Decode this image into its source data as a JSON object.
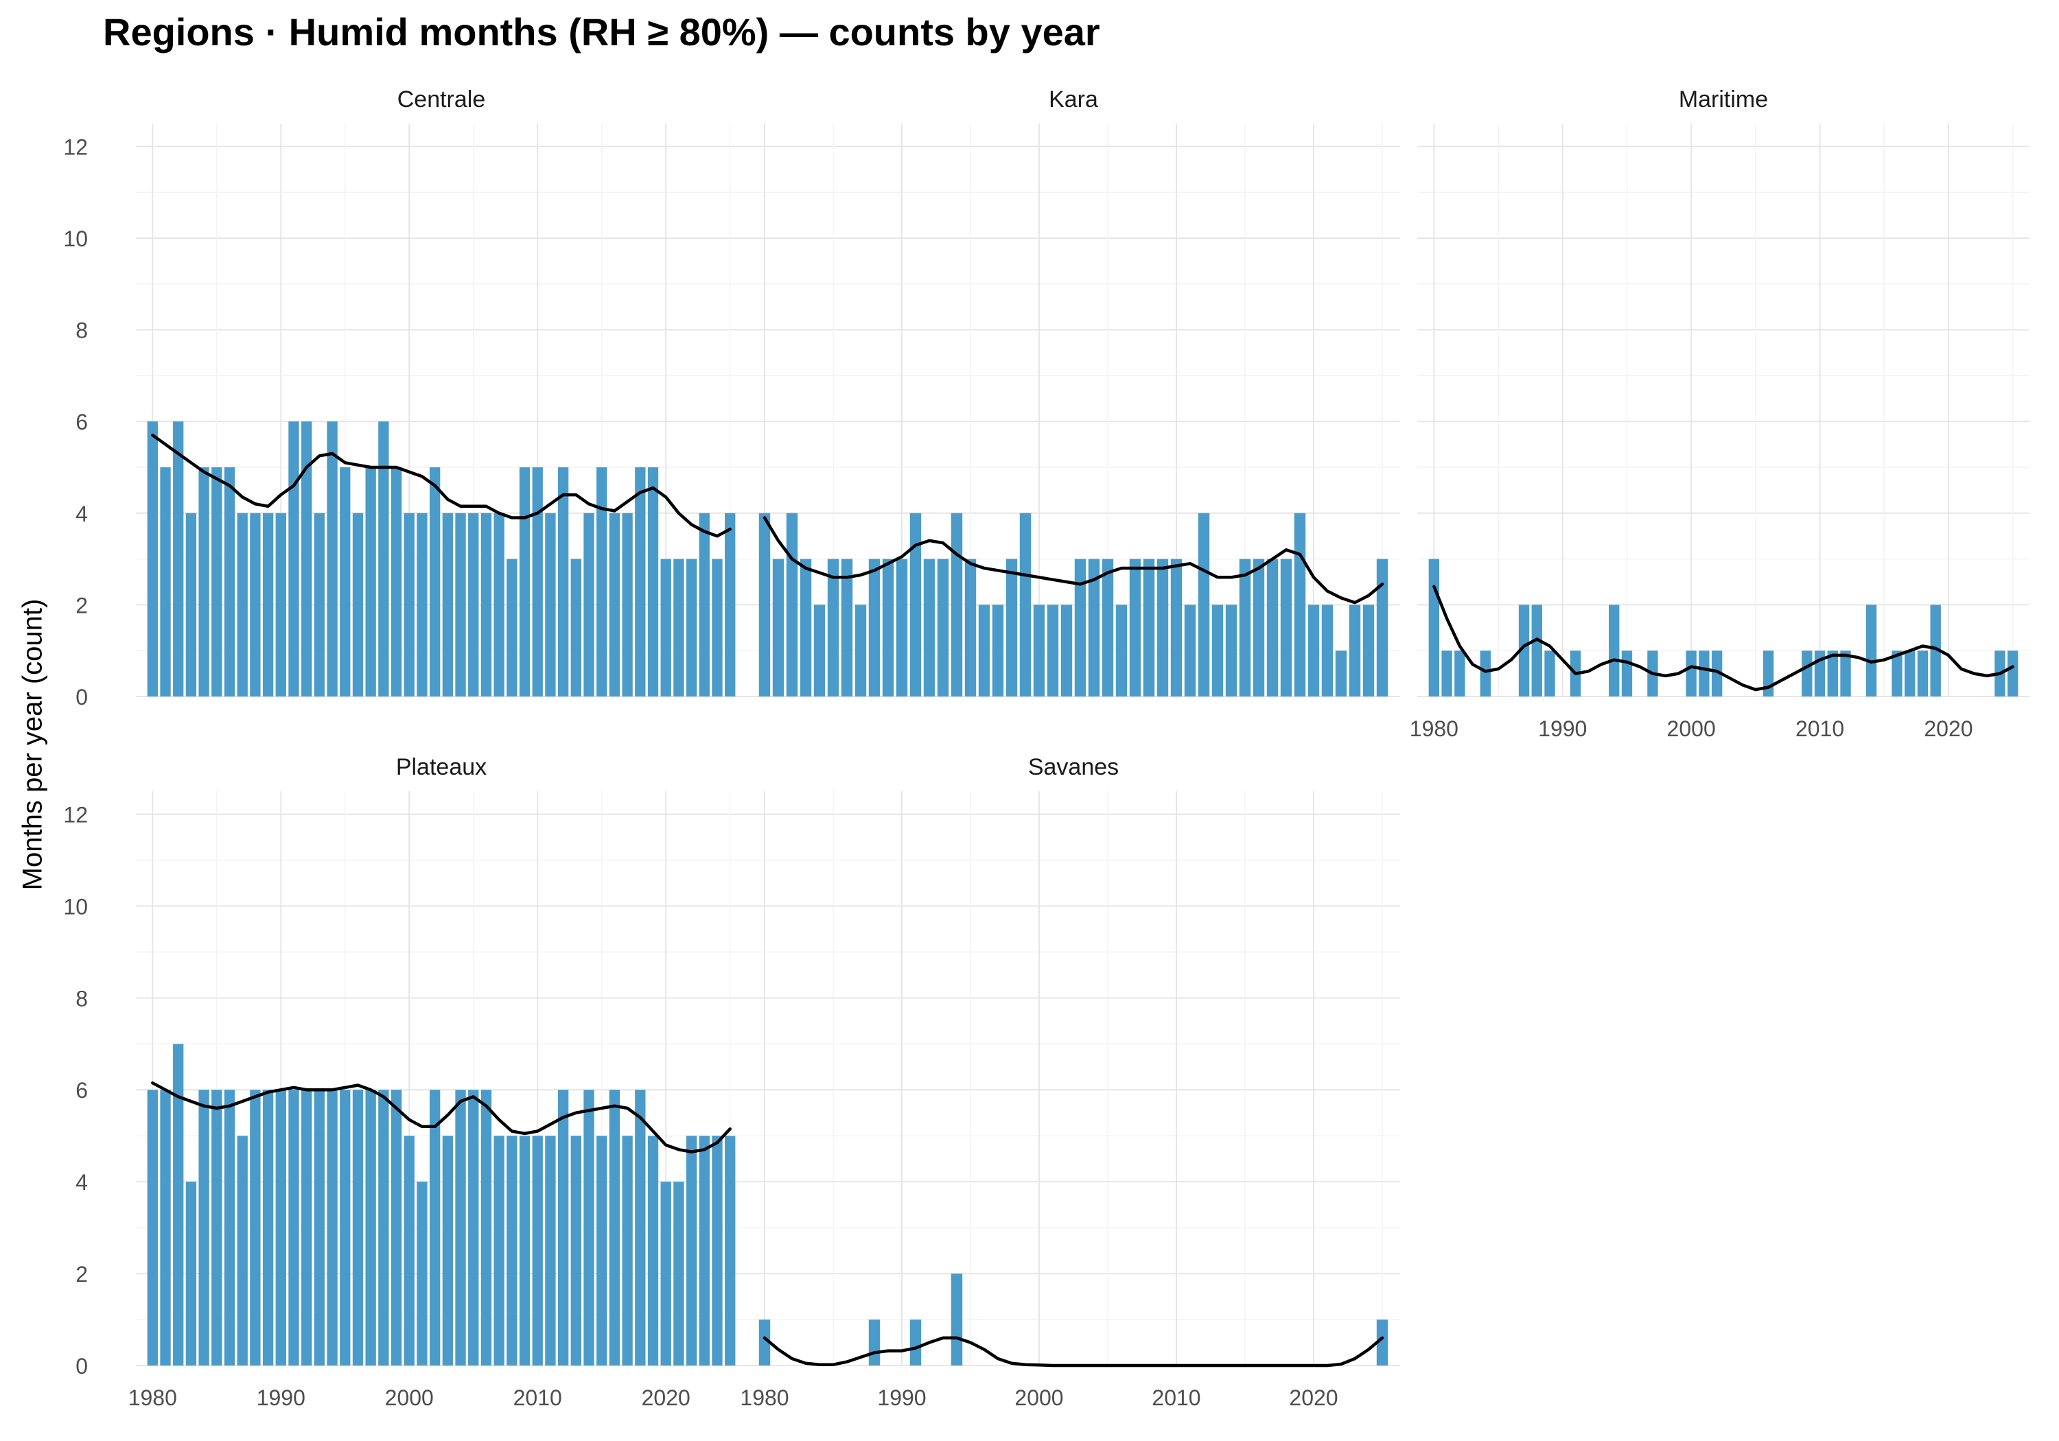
{
  "title": "Regions · Humid months (RH ≥ 80%) — counts by year",
  "chart_data": {
    "type": "bar",
    "title": "Regions · Humid months (RH ≥ 80%) — counts by year",
    "xlabel": "",
    "ylabel": "Months per year (count)",
    "ylim": [
      0,
      12.5
    ],
    "y_ticks": [
      0,
      2,
      4,
      6,
      8,
      10,
      12
    ],
    "xlim": [
      1978.7,
      2026.3
    ],
    "x_ticks": [
      1980,
      1990,
      2000,
      2010,
      2020
    ],
    "grid": true,
    "bar_color": "#4a9bc9",
    "smooth_color": "#000000",
    "x": [
      1980,
      1981,
      1982,
      1983,
      1984,
      1985,
      1986,
      1987,
      1988,
      1989,
      1990,
      1991,
      1992,
      1993,
      1994,
      1995,
      1996,
      1997,
      1998,
      1999,
      2000,
      2001,
      2002,
      2003,
      2004,
      2005,
      2006,
      2007,
      2008,
      2009,
      2010,
      2011,
      2012,
      2013,
      2014,
      2015,
      2016,
      2017,
      2018,
      2019,
      2020,
      2021,
      2022,
      2023,
      2024,
      2025
    ],
    "panels": [
      {
        "name": "Centrale",
        "values": [
          6,
          5,
          6,
          4,
          5,
          5,
          5,
          4,
          4,
          4,
          4,
          6,
          6,
          4,
          6,
          5,
          4,
          5,
          6,
          5,
          4,
          4,
          5,
          4,
          4,
          4,
          4,
          4,
          3,
          5,
          5,
          4,
          5,
          3,
          4,
          5,
          4,
          4,
          5,
          5,
          3,
          3,
          3,
          4,
          3,
          4
        ],
        "smooth": [
          5.7,
          5.5,
          5.3,
          5.1,
          4.9,
          4.75,
          4.6,
          4.35,
          4.2,
          4.15,
          4.4,
          4.6,
          5.0,
          5.25,
          5.3,
          5.1,
          5.05,
          5.0,
          5.0,
          5.0,
          4.9,
          4.8,
          4.6,
          4.3,
          4.15,
          4.15,
          4.15,
          4.0,
          3.9,
          3.9,
          4.0,
          4.2,
          4.4,
          4.4,
          4.2,
          4.1,
          4.05,
          4.25,
          4.45,
          4.55,
          4.35,
          4.0,
          3.75,
          3.6,
          3.5,
          3.65
        ]
      },
      {
        "name": "Kara",
        "values": [
          4,
          3,
          4,
          3,
          2,
          3,
          3,
          2,
          3,
          3,
          3,
          4,
          3,
          3,
          4,
          3,
          2,
          2,
          3,
          4,
          2,
          2,
          2,
          3,
          3,
          3,
          2,
          3,
          3,
          3,
          3,
          2,
          4,
          2,
          2,
          3,
          3,
          3,
          3,
          4,
          2,
          2,
          1,
          2,
          2,
          3
        ],
        "smooth": [
          3.9,
          3.4,
          3.0,
          2.8,
          2.7,
          2.6,
          2.6,
          2.65,
          2.75,
          2.9,
          3.05,
          3.3,
          3.4,
          3.35,
          3.1,
          2.9,
          2.8,
          2.75,
          2.7,
          2.65,
          2.6,
          2.55,
          2.5,
          2.45,
          2.55,
          2.7,
          2.8,
          2.8,
          2.8,
          2.8,
          2.85,
          2.9,
          2.75,
          2.6,
          2.6,
          2.65,
          2.8,
          3.0,
          3.2,
          3.1,
          2.6,
          2.3,
          2.15,
          2.05,
          2.2,
          2.45
        ]
      },
      {
        "name": "Maritime",
        "values": [
          3,
          1,
          1,
          0,
          1,
          0,
          0,
          2,
          2,
          1,
          0,
          1,
          0,
          0,
          2,
          1,
          0,
          1,
          0,
          0,
          1,
          1,
          1,
          0,
          0,
          0,
          1,
          0,
          0,
          1,
          1,
          1,
          1,
          0,
          2,
          0,
          1,
          1,
          1,
          2,
          0,
          0,
          0,
          0,
          1,
          1
        ],
        "smooth": [
          2.4,
          1.7,
          1.1,
          0.7,
          0.55,
          0.6,
          0.8,
          1.1,
          1.25,
          1.1,
          0.8,
          0.5,
          0.55,
          0.7,
          0.8,
          0.75,
          0.65,
          0.5,
          0.45,
          0.5,
          0.65,
          0.6,
          0.55,
          0.4,
          0.25,
          0.15,
          0.2,
          0.35,
          0.5,
          0.65,
          0.8,
          0.9,
          0.9,
          0.85,
          0.75,
          0.8,
          0.9,
          1.0,
          1.1,
          1.05,
          0.9,
          0.6,
          0.5,
          0.45,
          0.5,
          0.65
        ]
      },
      {
        "name": "Plateaux",
        "values": [
          6,
          6,
          7,
          4,
          6,
          6,
          6,
          5,
          6,
          6,
          6,
          6,
          6,
          6,
          6,
          6,
          6,
          6,
          6,
          6,
          5,
          4,
          6,
          5,
          6,
          6,
          6,
          5,
          5,
          5,
          5,
          5,
          6,
          5,
          6,
          5,
          6,
          5,
          6,
          5,
          4,
          4,
          5,
          5,
          5,
          5
        ],
        "smooth": [
          6.15,
          6.0,
          5.85,
          5.75,
          5.65,
          5.6,
          5.65,
          5.75,
          5.85,
          5.95,
          6.0,
          6.05,
          6.0,
          6.0,
          6.0,
          6.05,
          6.1,
          6.0,
          5.85,
          5.6,
          5.35,
          5.2,
          5.2,
          5.45,
          5.75,
          5.85,
          5.65,
          5.35,
          5.1,
          5.05,
          5.1,
          5.25,
          5.4,
          5.5,
          5.55,
          5.6,
          5.65,
          5.6,
          5.4,
          5.1,
          4.8,
          4.7,
          4.65,
          4.7,
          4.85,
          5.15
        ]
      },
      {
        "name": "Savanes",
        "values": [
          1,
          0,
          0,
          0,
          0,
          0,
          0,
          0,
          1,
          0,
          0,
          1,
          0,
          0,
          2,
          0,
          0,
          0,
          0,
          0,
          0,
          0,
          0,
          0,
          0,
          0,
          0,
          0,
          0,
          0,
          0,
          0,
          0,
          0,
          0,
          0,
          0,
          0,
          0,
          0,
          0,
          0,
          0,
          0,
          0,
          1
        ],
        "smooth": [
          0.6,
          0.35,
          0.15,
          0.05,
          0.02,
          0.02,
          0.08,
          0.18,
          0.28,
          0.32,
          0.32,
          0.38,
          0.5,
          0.6,
          0.6,
          0.5,
          0.35,
          0.15,
          0.05,
          0.02,
          0.01,
          0.0,
          0.0,
          0.0,
          0.0,
          0.0,
          0.0,
          0.0,
          0.0,
          0.0,
          0.0,
          0.0,
          0.0,
          0.0,
          0.0,
          0.0,
          0.0,
          0.0,
          0.0,
          0.0,
          0.0,
          0.0,
          0.03,
          0.15,
          0.35,
          0.6
        ]
      }
    ]
  }
}
